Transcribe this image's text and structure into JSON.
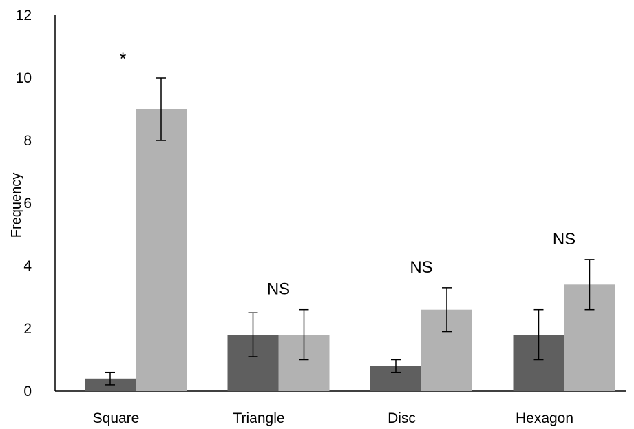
{
  "chart_data": {
    "type": "bar",
    "title": "",
    "xlabel": "",
    "ylabel": "Frequency",
    "ylim": [
      0,
      12
    ],
    "yticks": [
      0,
      2,
      4,
      6,
      8,
      10,
      12
    ],
    "grid": false,
    "legend": "none",
    "categories": [
      "Square",
      "Triangle",
      "Disc",
      "Hexagon"
    ],
    "series": [
      {
        "color": "#5f5f5f",
        "values": [
          0.4,
          1.8,
          0.8,
          1.8
        ],
        "error_low": [
          0.2,
          1.1,
          0.6,
          1.0
        ],
        "error_high": [
          0.6,
          2.5,
          1.0,
          2.6
        ]
      },
      {
        "color": "#b2b2b2",
        "values": [
          9.0,
          1.8,
          2.6,
          3.4
        ],
        "error_low": [
          8.0,
          1.0,
          1.9,
          2.6
        ],
        "error_high": [
          10.0,
          2.6,
          3.3,
          4.2
        ]
      }
    ],
    "annotations": [
      "*",
      "NS",
      "NS",
      "NS"
    ]
  }
}
